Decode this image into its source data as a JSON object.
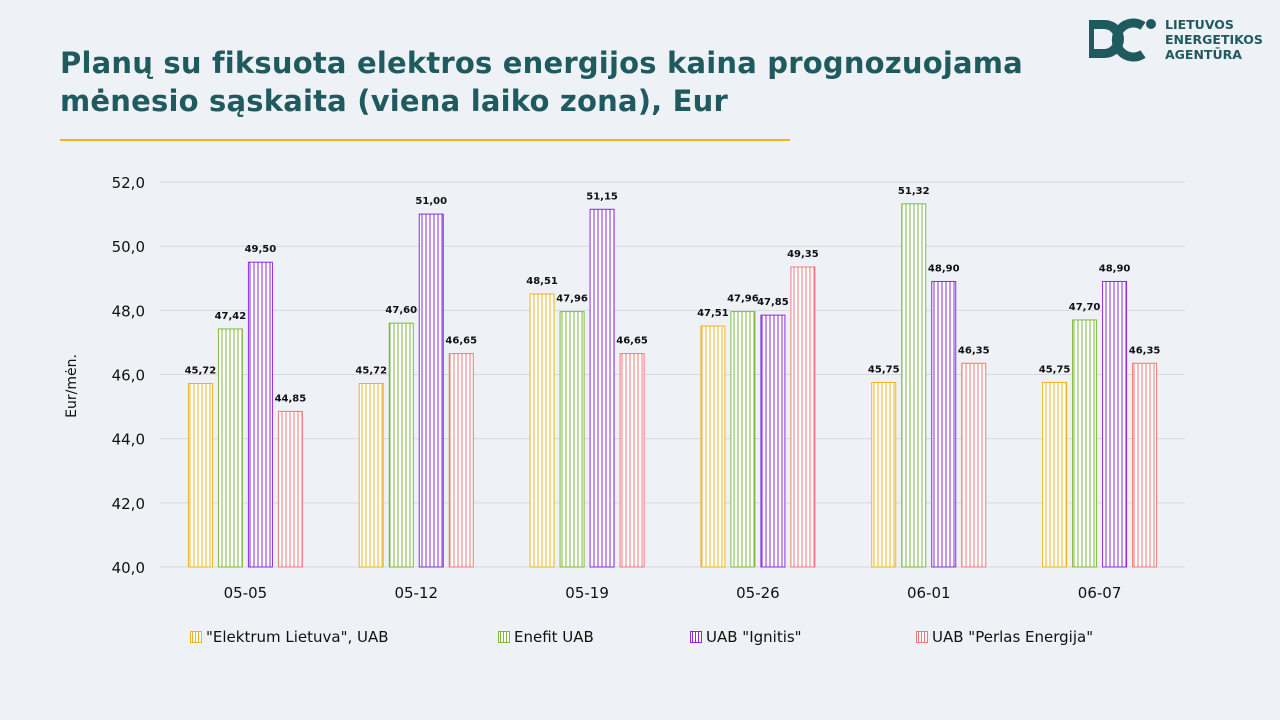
{
  "title": {
    "line1": "Planų su fiksuota elektros energijos kaina prognozuojama",
    "line2": "mėnesio sąskaita (viena laiko zona), Eur"
  },
  "logo": {
    "line1": "LIETUVOS",
    "line2": "ENERGETIKOS",
    "line3": "AGENTŪRA",
    "color": "#1f5a5f"
  },
  "colors": {
    "title": "#1f5a5f",
    "accent_rule": "#f0b323",
    "background": "#eef2f6",
    "grid": "#d6d9dc"
  },
  "chart_data": {
    "type": "bar",
    "title": "",
    "xlabel": "",
    "ylabel": "Eur/mėn.",
    "ylim": [
      40,
      52
    ],
    "yticks": [
      "40,0",
      "42,0",
      "44,0",
      "46,0",
      "48,0",
      "50,0",
      "52,0"
    ],
    "ytick_values": [
      40,
      42,
      44,
      46,
      48,
      50,
      52
    ],
    "grid": true,
    "legend_position": "bottom",
    "categories": [
      "05-05",
      "05-12",
      "05-19",
      "05-26",
      "06-01",
      "06-07"
    ],
    "series": [
      {
        "name": "\"Elektrum Lietuva\", UAB",
        "color": "#f0b323",
        "values": [
          45.72,
          45.72,
          48.51,
          47.51,
          45.75,
          45.75
        ],
        "labels": [
          "45,72",
          "45,72",
          "48,51",
          "47,51",
          "45,75",
          "45,75"
        ]
      },
      {
        "name": "Enefit UAB",
        "color": "#7dba3c",
        "values": [
          47.42,
          47.6,
          47.96,
          47.96,
          51.32,
          47.7
        ],
        "labels": [
          "47,42",
          "47,60",
          "47,96",
          "47,96",
          "51,32",
          "47,70"
        ]
      },
      {
        "name": "UAB \"Ignitis\"",
        "color": "#8a2be2",
        "values": [
          49.5,
          51.0,
          51.15,
          47.85,
          48.9,
          48.9
        ],
        "labels": [
          "49,50",
          "51,00",
          "51,15",
          "47,85",
          "48,90",
          "48,90"
        ]
      },
      {
        "name": "UAB \"Perlas Energija\"",
        "color": "#f07878",
        "values": [
          44.85,
          46.65,
          46.65,
          49.35,
          46.35,
          46.35
        ],
        "labels": [
          "44,85",
          "46,65",
          "46,65",
          "49,35",
          "46,35",
          "46,35"
        ]
      }
    ]
  }
}
